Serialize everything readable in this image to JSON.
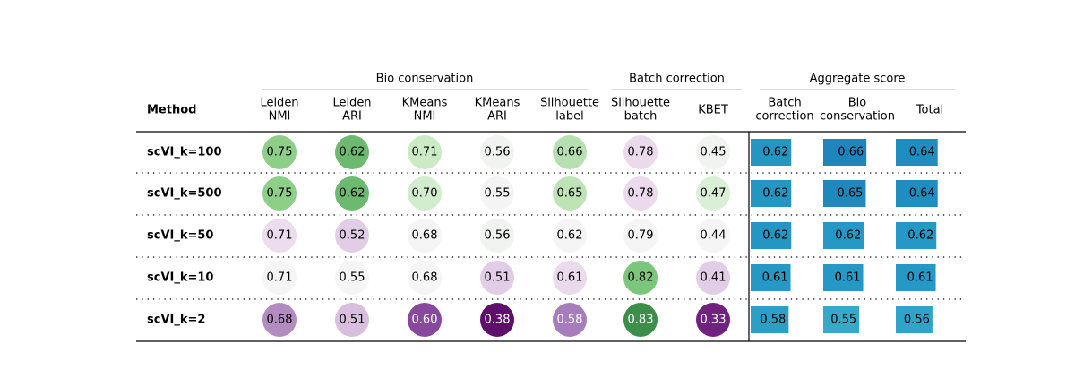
{
  "chart_data": {
    "type": "table",
    "row_header": "Method",
    "groups": [
      {
        "label": "Bio conservation",
        "columns": [
          0,
          1,
          2,
          3,
          4
        ]
      },
      {
        "label": "Batch correction",
        "columns": [
          5,
          6
        ]
      },
      {
        "label": "Aggregate score",
        "columns": [
          7,
          8,
          9
        ]
      }
    ],
    "columns": [
      {
        "lines": [
          "Leiden",
          "NMI"
        ],
        "kind": "circle"
      },
      {
        "lines": [
          "Leiden",
          "ARI"
        ],
        "kind": "circle"
      },
      {
        "lines": [
          "KMeans",
          "NMI"
        ],
        "kind": "circle"
      },
      {
        "lines": [
          "KMeans",
          "ARI"
        ],
        "kind": "circle"
      },
      {
        "lines": [
          "Silhouette",
          "label"
        ],
        "kind": "circle"
      },
      {
        "lines": [
          "Silhouette",
          "batch"
        ],
        "kind": "circle"
      },
      {
        "lines": [
          "KBET"
        ],
        "kind": "circle"
      },
      {
        "lines": [
          "Batch",
          "correction"
        ],
        "kind": "bar"
      },
      {
        "lines": [
          "Bio",
          "conservation"
        ],
        "kind": "bar"
      },
      {
        "lines": [
          "Total"
        ],
        "kind": "bar"
      }
    ],
    "rows": [
      {
        "method": "scVI_k=100",
        "values": [
          "0.75",
          "0.62",
          "0.71",
          "0.56",
          "0.66",
          "0.78",
          "0.45",
          "0.62",
          "0.66",
          "0.64"
        ],
        "fills": [
          "#8dcf89",
          "#6bba6f",
          "#cbeac5",
          "#f0f3ef",
          "#b6e0b0",
          "#eadaec",
          "#f0f3ef",
          "#2396c4",
          "#1f85bc",
          "#208dc0"
        ],
        "text": [
          "#000000",
          "#000000",
          "#000000",
          "#000000",
          "#000000",
          "#000000",
          "#000000",
          "#000000",
          "#000000",
          "#000000"
        ]
      },
      {
        "method": "scVI_k=500",
        "values": [
          "0.75",
          "0.62",
          "0.70",
          "0.55",
          "0.65",
          "0.78",
          "0.47",
          "0.62",
          "0.65",
          "0.64"
        ],
        "fills": [
          "#8dcf89",
          "#6bba6f",
          "#d2ecce",
          "#f4f4f4",
          "#bde3b7",
          "#eadaec",
          "#daf0d6",
          "#2396c4",
          "#1f89be",
          "#208dc0"
        ],
        "text": [
          "#000000",
          "#000000",
          "#000000",
          "#000000",
          "#000000",
          "#000000",
          "#000000",
          "#000000",
          "#000000",
          "#000000"
        ]
      },
      {
        "method": "scVI_k=50",
        "values": [
          "0.71",
          "0.52",
          "0.68",
          "0.56",
          "0.62",
          "0.79",
          "0.44",
          "0.62",
          "0.62",
          "0.62"
        ],
        "fills": [
          "#ecdcee",
          "#e2cde6",
          "#f5f5f5",
          "#f0f3ef",
          "#f5f5f5",
          "#f5f5f5",
          "#f5f5f5",
          "#2396c4",
          "#2598c5",
          "#2598c5"
        ],
        "text": [
          "#000000",
          "#000000",
          "#000000",
          "#000000",
          "#000000",
          "#000000",
          "#000000",
          "#000000",
          "#000000",
          "#000000"
        ]
      },
      {
        "method": "scVI_k=10",
        "values": [
          "0.71",
          "0.55",
          "0.68",
          "0.51",
          "0.61",
          "0.82",
          "0.41",
          "0.61",
          "0.61",
          "0.61"
        ],
        "fills": [
          "#f5f5f5",
          "#f5f5f5",
          "#f5f5f5",
          "#e2cde6",
          "#eadaec",
          "#7cc67c",
          "#e2cde6",
          "#2598c5",
          "#2598c5",
          "#2598c5"
        ],
        "text": [
          "#000000",
          "#000000",
          "#000000",
          "#000000",
          "#000000",
          "#000000",
          "#000000",
          "#000000",
          "#000000",
          "#000000"
        ]
      },
      {
        "method": "scVI_k=2",
        "values": [
          "0.68",
          "0.51",
          "0.60",
          "0.38",
          "0.58",
          "0.83",
          "0.33",
          "0.58",
          "0.55",
          "0.56"
        ],
        "fills": [
          "#b28cc0",
          "#d7bfdd",
          "#88489d",
          "#5e0f6c",
          "#a67dba",
          "#3b8f4a",
          "#70227f",
          "#2c9fc7",
          "#36a9ca",
          "#2fa3c8"
        ],
        "text": [
          "#000000",
          "#000000",
          "#ffffff",
          "#ffffff",
          "#ffffff",
          "#ffffff",
          "#ffffff",
          "#000000",
          "#000000",
          "#000000"
        ]
      }
    ]
  }
}
